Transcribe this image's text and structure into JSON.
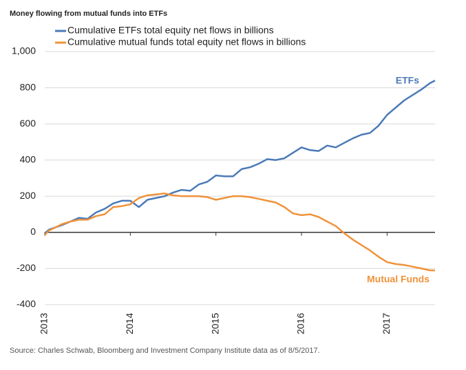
{
  "chart_data": {
    "type": "line",
    "title": "Money flowing from mutual funds into ETFs",
    "source": "Source: Charles Schwab, Bloomberg and Investment Company Institute data as of 8/5/2017.",
    "annotations": [
      "ETFs",
      "Mutual Funds"
    ],
    "x": [
      2013,
      2013.05,
      2013.2,
      2013.3,
      2013.4,
      2013.5,
      2013.6,
      2013.7,
      2013.8,
      2013.9,
      2014.0,
      2014.1,
      2014.2,
      2014.3,
      2014.4,
      2014.5,
      2014.6,
      2014.7,
      2014.8,
      2014.9,
      2015.0,
      2015.1,
      2015.2,
      2015.3,
      2015.4,
      2015.5,
      2015.6,
      2015.7,
      2015.8,
      2015.9,
      2016.0,
      2016.1,
      2016.2,
      2016.3,
      2016.4,
      2016.5,
      2016.6,
      2016.7,
      2016.8,
      2016.9,
      2017.0,
      2017.1,
      2017.2,
      2017.3,
      2017.4,
      2017.5,
      2017.56
    ],
    "series": [
      {
        "name": "Cumulative ETFs total equity net flows in billions",
        "color": "#4a7ab8",
        "values": [
          -5,
          15,
          40,
          60,
          80,
          75,
          110,
          130,
          160,
          175,
          175,
          140,
          180,
          190,
          200,
          220,
          235,
          230,
          265,
          280,
          315,
          310,
          310,
          350,
          360,
          380,
          405,
          400,
          410,
          440,
          470,
          455,
          450,
          480,
          470,
          495,
          520,
          540,
          550,
          590,
          650,
          690,
          730,
          760,
          790,
          825,
          840
        ]
      },
      {
        "name": "Cumulative mutual funds total equity net flows in billions",
        "color": "#f0923a",
        "values": [
          -15,
          10,
          45,
          60,
          70,
          70,
          90,
          100,
          140,
          145,
          155,
          190,
          205,
          210,
          215,
          205,
          200,
          200,
          200,
          195,
          180,
          190,
          200,
          200,
          195,
          185,
          175,
          165,
          140,
          105,
          95,
          100,
          85,
          60,
          35,
          -5,
          -40,
          -70,
          -100,
          -135,
          -165,
          -175,
          -180,
          -190,
          -200,
          -210,
          -210
        ]
      }
    ],
    "xlim": [
      2013,
      2017.56
    ],
    "xticks": [
      2013,
      2014,
      2015,
      2016,
      2017
    ],
    "ylim": [
      -400,
      1000
    ],
    "yticks": [
      -400,
      -200,
      0,
      200,
      400,
      600,
      800,
      {
        "value": 1000,
        "label": "1,000"
      }
    ],
    "grid": true
  }
}
